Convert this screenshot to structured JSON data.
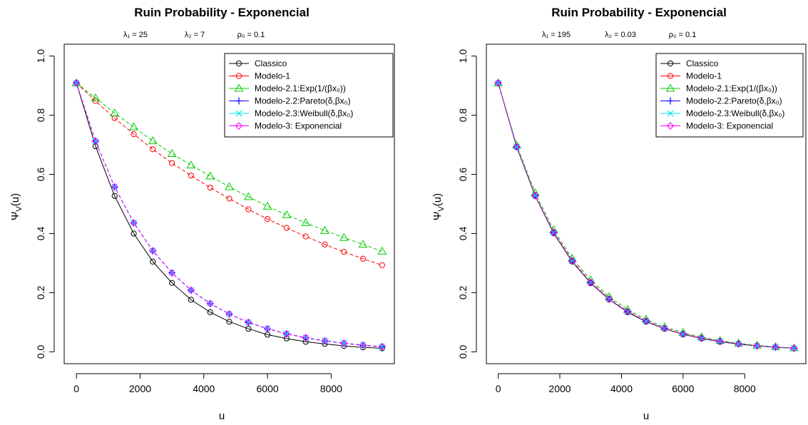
{
  "chart_data": [
    {
      "type": "line",
      "title": "Ruin Probability -  Exponencial",
      "params": [
        "λ₁ = 25",
        "λ₂ = 7",
        "ρ₀ = 0.1"
      ],
      "xlabel": "u",
      "ylabel": "Ψ",
      "ylabel_sub": "V",
      "ylabel_tail": "(u)",
      "xlim": [
        0,
        9600
      ],
      "ylim": [
        0,
        1
      ],
      "xticks": [
        "0",
        "2000",
        "4000",
        "6000",
        "8000"
      ],
      "yticks": [
        "0.0",
        "0.2",
        "0.4",
        "0.6",
        "0.8",
        "1.0"
      ],
      "legend_position": "top-right",
      "x": [
        0,
        600,
        1200,
        1800,
        2400,
        3000,
        3600,
        4200,
        4800,
        5400,
        6000,
        6600,
        7200,
        7800,
        8400,
        9000,
        9600
      ],
      "series": [
        {
          "name": "Classico",
          "color": "#000000",
          "marker": "circle",
          "dash": "solid",
          "values": [
            0.909,
            0.695,
            0.527,
            0.4,
            0.305,
            0.233,
            0.176,
            0.134,
            0.102,
            0.078,
            0.058,
            0.045,
            0.034,
            0.027,
            0.02,
            0.015,
            0.012
          ]
        },
        {
          "name": "Modelo-1",
          "color": "#ff0000",
          "marker": "circle",
          "dash": "dashed",
          "values": [
            0.909,
            0.848,
            0.79,
            0.736,
            0.685,
            0.638,
            0.596,
            0.555,
            0.518,
            0.482,
            0.449,
            0.419,
            0.39,
            0.363,
            0.338,
            0.315,
            0.293
          ]
        },
        {
          "name": "Modelo-2.1:Exp(1/(βx₀))",
          "color": "#00cc00",
          "marker": "triangle",
          "dash": "dashed",
          "values": [
            0.909,
            0.858,
            0.807,
            0.76,
            0.713,
            0.67,
            0.631,
            0.594,
            0.558,
            0.524,
            0.492,
            0.463,
            0.436,
            0.41,
            0.386,
            0.363,
            0.34
          ]
        },
        {
          "name": "Modelo-2.2:Pareto(δ,βx₀)",
          "color": "#0000ff",
          "marker": "plus",
          "dash": "dashed",
          "values": [
            0.909,
            0.712,
            0.557,
            0.436,
            0.341,
            0.267,
            0.208,
            0.163,
            0.128,
            0.099,
            0.078,
            0.061,
            0.047,
            0.037,
            0.029,
            0.022,
            0.017
          ]
        },
        {
          "name": "Modelo-2.3:Weibull(δ,βx₀)",
          "color": "#00e5ee",
          "marker": "x",
          "dash": "dashed",
          "values": [
            0.909,
            0.713,
            0.558,
            0.437,
            0.342,
            0.268,
            0.209,
            0.164,
            0.128,
            0.1,
            0.079,
            0.062,
            0.048,
            0.038,
            0.03,
            0.023,
            0.018
          ]
        },
        {
          "name": "Modelo-3: Exponencial",
          "color": "#ff00ff",
          "marker": "diamond",
          "dash": "dashed",
          "values": [
            0.909,
            0.712,
            0.558,
            0.436,
            0.342,
            0.267,
            0.208,
            0.163,
            0.128,
            0.1,
            0.078,
            0.061,
            0.048,
            0.037,
            0.029,
            0.023,
            0.018
          ]
        }
      ]
    },
    {
      "type": "line",
      "title": "Ruin Probability -  Exponencial",
      "params": [
        "λ₁ = 195",
        "λ₂ = 0.03",
        "ρ₀ = 0.1"
      ],
      "xlabel": "u",
      "ylabel": "Ψ",
      "ylabel_sub": "V",
      "ylabel_tail": "(u)",
      "xlim": [
        0,
        9600
      ],
      "ylim": [
        0,
        1
      ],
      "xticks": [
        "0",
        "2000",
        "4000",
        "6000",
        "8000"
      ],
      "yticks": [
        "0.0",
        "0.2",
        "0.4",
        "0.6",
        "0.8",
        "1.0"
      ],
      "legend_position": "top-right",
      "x": [
        0,
        600,
        1200,
        1800,
        2400,
        3000,
        3600,
        4200,
        4800,
        5400,
        6000,
        6600,
        7200,
        7800,
        8400,
        9000,
        9600
      ],
      "series": [
        {
          "name": "Classico",
          "color": "#000000",
          "marker": "circle",
          "dash": "solid",
          "values": [
            0.909,
            0.692,
            0.527,
            0.401,
            0.305,
            0.232,
            0.177,
            0.134,
            0.102,
            0.078,
            0.059,
            0.045,
            0.034,
            0.026,
            0.02,
            0.015,
            0.012
          ]
        },
        {
          "name": "Modelo-1",
          "color": "#ff0000",
          "marker": "circle",
          "dash": "dashed",
          "values": [
            0.909,
            0.694,
            0.53,
            0.405,
            0.309,
            0.236,
            0.18,
            0.137,
            0.105,
            0.08,
            0.061,
            0.047,
            0.036,
            0.027,
            0.021,
            0.016,
            0.012
          ]
        },
        {
          "name": "Modelo-2.1:Exp(1/(βx₀))",
          "color": "#00cc00",
          "marker": "triangle",
          "dash": "dashed",
          "values": [
            0.909,
            0.699,
            0.537,
            0.412,
            0.316,
            0.243,
            0.186,
            0.143,
            0.11,
            0.084,
            0.065,
            0.05,
            0.038,
            0.029,
            0.022,
            0.017,
            0.013
          ]
        },
        {
          "name": "Modelo-2.2:Pareto(δ,βx₀)",
          "color": "#0000ff",
          "marker": "plus",
          "dash": "dashed",
          "values": [
            0.909,
            0.693,
            0.528,
            0.403,
            0.307,
            0.234,
            0.178,
            0.136,
            0.104,
            0.079,
            0.06,
            0.046,
            0.035,
            0.027,
            0.02,
            0.016,
            0.012
          ]
        },
        {
          "name": "Modelo-2.3:Weibull(δ,βx₀)",
          "color": "#00e5ee",
          "marker": "x",
          "dash": "dashed",
          "values": [
            0.909,
            0.693,
            0.529,
            0.403,
            0.307,
            0.234,
            0.179,
            0.136,
            0.104,
            0.079,
            0.06,
            0.046,
            0.035,
            0.027,
            0.02,
            0.016,
            0.012
          ]
        },
        {
          "name": "Modelo-3: Exponencial",
          "color": "#ff00ff",
          "marker": "diamond",
          "dash": "dashed",
          "values": [
            0.909,
            0.693,
            0.528,
            0.403,
            0.307,
            0.234,
            0.178,
            0.136,
            0.104,
            0.079,
            0.06,
            0.046,
            0.035,
            0.027,
            0.02,
            0.016,
            0.012
          ]
        }
      ]
    }
  ]
}
